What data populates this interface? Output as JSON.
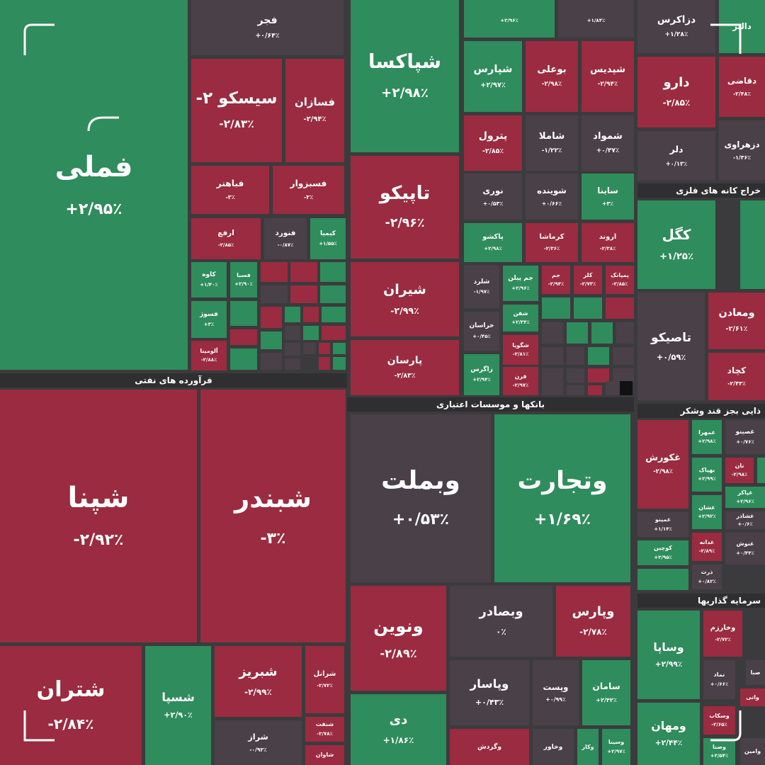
{
  "tiles": [
    {
      "label": "فملی",
      "change": "+۲/۹۵٪"
    },
    {
      "label": "فجر",
      "change": "+۰/۶۴٪"
    },
    {
      "label": "سیسکو ۲-",
      "change": "-۲/۸۳٪"
    },
    {
      "label": "فسازان",
      "change": "-۲/۹۴٪"
    },
    {
      "label": "فباهنر",
      "change": "-۳٪"
    },
    {
      "label": "فسبزوار",
      "change": "-۳٪"
    },
    {
      "label": "ارفع",
      "change": "-۲/۸۵٪"
    },
    {
      "label": "فنورد",
      "change": "-۰/۸۷٪"
    },
    {
      "label": "کیمیا",
      "change": "+۱/۵۵٪"
    },
    {
      "label": "کاوه",
      "change": "+۱/۴۰٪"
    },
    {
      "label": "فسبا",
      "change": "+۲/۹۰٪"
    },
    {
      "label": "فسوژ",
      "change": "+۳٪"
    },
    {
      "label": "آلومینا",
      "change": "-۲/۸۸٪"
    },
    {
      "label": "شپنا",
      "change": "-۲/۹۲٪"
    },
    {
      "label": "شبندر",
      "change": "-۳٪"
    },
    {
      "label": "شتران",
      "change": "-۲/۸۴٪"
    },
    {
      "label": "شسپا",
      "change": "+۲/۹۰٪"
    },
    {
      "label": "شبریز",
      "change": "-۲/۹۹٪"
    },
    {
      "label": "شرانل",
      "change": "-۲/۷۲٪"
    },
    {
      "label": "شراز",
      "change": "-۰/۹۳٪"
    },
    {
      "label": "شنفت",
      "change": "-۲/۷۸٪"
    },
    {
      "label": "شاوان"
    },
    {
      "label": "شپاکسا",
      "change": "+۲/۹۸٪"
    },
    {
      "label": "تاپیکو",
      "change": "-۲/۹۶٪"
    },
    {
      "label": "شیران",
      "change": "-۲/۹۹٪"
    },
    {
      "label": "پارسان",
      "change": "-۲/۸۳٪"
    },
    {
      "label": "وبملت",
      "change": "+۰/۵۳٪"
    },
    {
      "label": "وتجارت",
      "change": "+۱/۶۹٪"
    },
    {
      "label": "ونوین",
      "change": "-۲/۸۹٪"
    },
    {
      "label": "وبصادر",
      "change": "۰٪"
    },
    {
      "label": "وپارس",
      "change": "-۲/۷۸٪"
    },
    {
      "label": "دی",
      "change": "+۱/۸۶٪"
    },
    {
      "label": "وپاسار",
      "change": "+۰/۴۳٪"
    },
    {
      "label": "وپست",
      "change": "+۰/۹۹٪"
    },
    {
      "label": "سامان",
      "change": "+۲/۴۲٪"
    },
    {
      "label": "وگردش"
    },
    {
      "label": "وخاور"
    },
    {
      "label": "وکار"
    },
    {
      "label": "وسینا",
      "change": "+۲/۹۷٪"
    },
    {
      "change": "+۲/۹۶٪"
    },
    {
      "change": "+۱/۸۴٪"
    },
    {
      "label": "شپارس",
      "change": "+۲/۹۷٪"
    },
    {
      "label": "بوعلی",
      "change": "-۲/۹۸٪"
    },
    {
      "label": "شپدیس",
      "change": "-۲/۹۴٪"
    },
    {
      "label": "پترول",
      "change": "-۲/۸۵٪"
    },
    {
      "label": "شاملا",
      "change": "-۱/۲۲٪"
    },
    {
      "label": "شمواد",
      "change": "+۰/۳۷٪"
    },
    {
      "label": "نوری",
      "change": "+۰/۵۳٪"
    },
    {
      "label": "شوینده",
      "change": "+۰/۶۶٪"
    },
    {
      "label": "ساینا",
      "change": "+۳٪"
    },
    {
      "label": "پاکشو",
      "change": "+۲/۹۸٪"
    },
    {
      "label": "کرماشا",
      "change": "-۲/۳۶٪"
    },
    {
      "label": "اروند",
      "change": "-۲/۳۸٪"
    },
    {
      "label": "شلرد",
      "change": "-۱/۹۷٪"
    },
    {
      "label": "جم پیلن",
      "change": "+۲/۹۶٪"
    },
    {
      "label": "جم",
      "change": "-۲/۹۴٪"
    },
    {
      "label": "کلر",
      "change": "-۲/۷۳٪"
    },
    {
      "label": "پمپانک",
      "change": "-۲/۸۵٪"
    },
    {
      "label": "خراسان",
      "change": "+۰/۴۵٪"
    },
    {
      "label": "شفن",
      "change": "+۲/۳۴٪"
    },
    {
      "label": "شگویا",
      "change": "-۲/۸۱٪"
    },
    {
      "label": "زاگرس",
      "change": "+۲/۹۴٪"
    },
    {
      "label": "قرن",
      "change": "-۲/۹۷٪"
    },
    {
      "label": "دزاکرس",
      "change": "+۱/۲۸٪"
    },
    {
      "label": "دالبر"
    },
    {
      "label": "دارو",
      "change": "-۲/۸۵٪"
    },
    {
      "label": "دقاضی",
      "change": "-۲/۴۸٪"
    },
    {
      "label": "دلر",
      "change": "+۰/۱۳٪"
    },
    {
      "label": "دزهراوی",
      "change": "-۱/۳۶٪"
    },
    {
      "label": "کگل",
      "change": "+۱/۲۵٪"
    },
    {
      "label": "تاصیکو",
      "change": "+۰/۵۹٪"
    },
    {
      "label": "ومعادن",
      "change": "-۲/۶۱٪"
    },
    {
      "label": "کچاد",
      "change": "-۲/۴۳٪"
    },
    {
      "label": "غکورش",
      "change": "-۲/۹۸٪"
    },
    {
      "label": "غمهرا",
      "change": "+۲/۹۸٪"
    },
    {
      "label": "غصینو",
      "change": "+۰/۷۶٪"
    },
    {
      "label": "بهپاک",
      "change": "+۲/۹۹٪"
    },
    {
      "label": "نان",
      "change": "-۲/۹۸٪"
    },
    {
      "label": "غمینو",
      "change": "+۱/۱۴٪"
    },
    {
      "label": "کوچین",
      "change": "+۲/۹۵٪"
    },
    {
      "label": "غشان",
      "change": "+۲/۹۲٪"
    },
    {
      "label": "غپاکر",
      "change": "+۲/۹۶٪"
    },
    {
      "label": "غشاذر",
      "change": "+۰/۶٪"
    },
    {
      "label": "غدانه",
      "change": "-۲/۸۹٪"
    },
    {
      "label": "غنوش",
      "change": "+۰/۴۴٪"
    },
    {
      "label": "ذرت",
      "change": "+۰/۸۲٪"
    },
    {
      "label": "وساپا",
      "change": "+۲/۹۹٪"
    },
    {
      "label": "وخارزم",
      "change": "-۲/۷۲٪"
    },
    {
      "label": "نماد",
      "change": "+۰/۶۶٪"
    },
    {
      "label": "صبا"
    },
    {
      "label": "واتی"
    },
    {
      "label": "ومهان",
      "change": "+۲/۴۴٪"
    },
    {
      "label": "وسکاب",
      "change": "-۲/۶۵٪"
    },
    {
      "label": "وصنا",
      "change": "+۲/۵۴٪"
    },
    {
      "label": "وامین"
    }
  ],
  "headers": [
    "فرآورده های نفتی",
    "بانکها و موسسات اعتباری",
    "خراج کانه های فلزی",
    "ذایی بجز قند وشکر",
    "سرمایه گذاریها"
  ]
}
